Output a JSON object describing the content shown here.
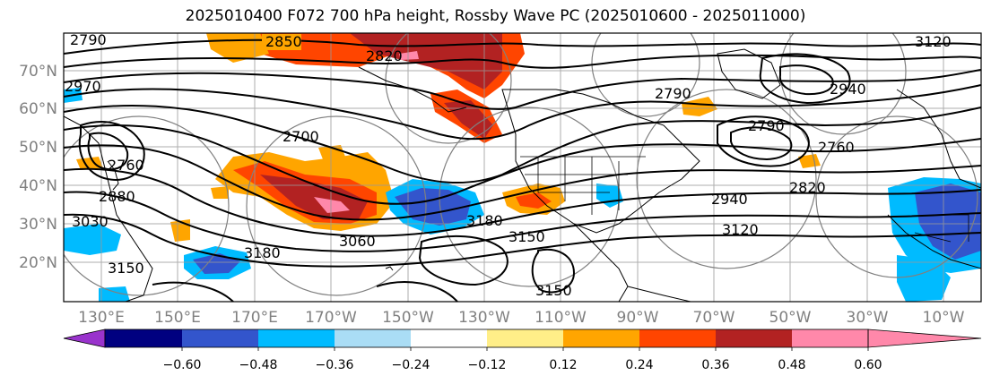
{
  "title": "2025010400 F072 700 hPa height, Rossby Wave PC (2025010600 - 2025011000)",
  "lat_labels": [
    "70°N",
    "60°N",
    "50°N",
    "40°N",
    "30°N",
    "20°N"
  ],
  "lon_labels": [
    "130°E",
    "150°E",
    "170°E",
    "170°W",
    "150°W",
    "130°W",
    "110°W",
    "90°W",
    "70°W",
    "50°W",
    "30°W",
    "10°W"
  ],
  "contour_labels": [
    "2850",
    "2820",
    "2790",
    "2970",
    "2760",
    "2700",
    "2880",
    "3030",
    "3150",
    "3180",
    "3060",
    "3180",
    "3150",
    "3150",
    "2790",
    "2760",
    "2940",
    "2820",
    "3120",
    "2790",
    "2940",
    "3120"
  ],
  "colorbar": {
    "ticks": [
      "−0.60",
      "−0.48",
      "−0.36",
      "−0.24",
      "−0.12",
      "0.12",
      "0.24",
      "0.36",
      "0.48",
      "0.60"
    ],
    "colors": [
      "#9933cc",
      "#000080",
      "#3355cc",
      "#00bbff",
      "#aaddf5",
      "#ffffff",
      "#ffee88",
      "#ffa500",
      "#ff4500",
      "#b22222",
      "#ff88aa"
    ]
  }
}
